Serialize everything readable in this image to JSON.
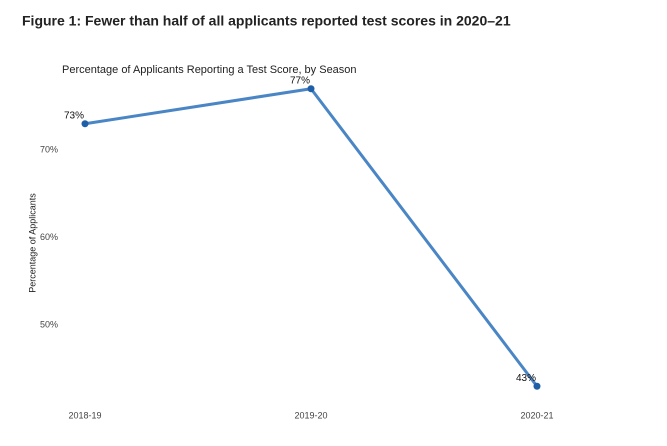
{
  "chart_data": {
    "type": "line",
    "title": "Figure 1: Fewer than half of all applicants reported test scores in 2020–21",
    "subtitle": "Percentage of Applicants Reporting a Test Score, by Season",
    "y_label": "Percentage of Applicants",
    "categories": [
      "2018-19",
      "2019-20",
      "2020-21"
    ],
    "values": [
      73,
      77,
      43
    ],
    "value_labels": [
      "73%",
      "77%",
      "43%"
    ],
    "color": "#4a86c5",
    "marker_color": "#1f5fa8",
    "ylim": [
      41,
      79
    ],
    "yticks": [
      {
        "value": 50,
        "label": "50%"
      },
      {
        "value": 60,
        "label": "60%"
      },
      {
        "value": 70,
        "label": "70%"
      }
    ],
    "grid": false
  }
}
